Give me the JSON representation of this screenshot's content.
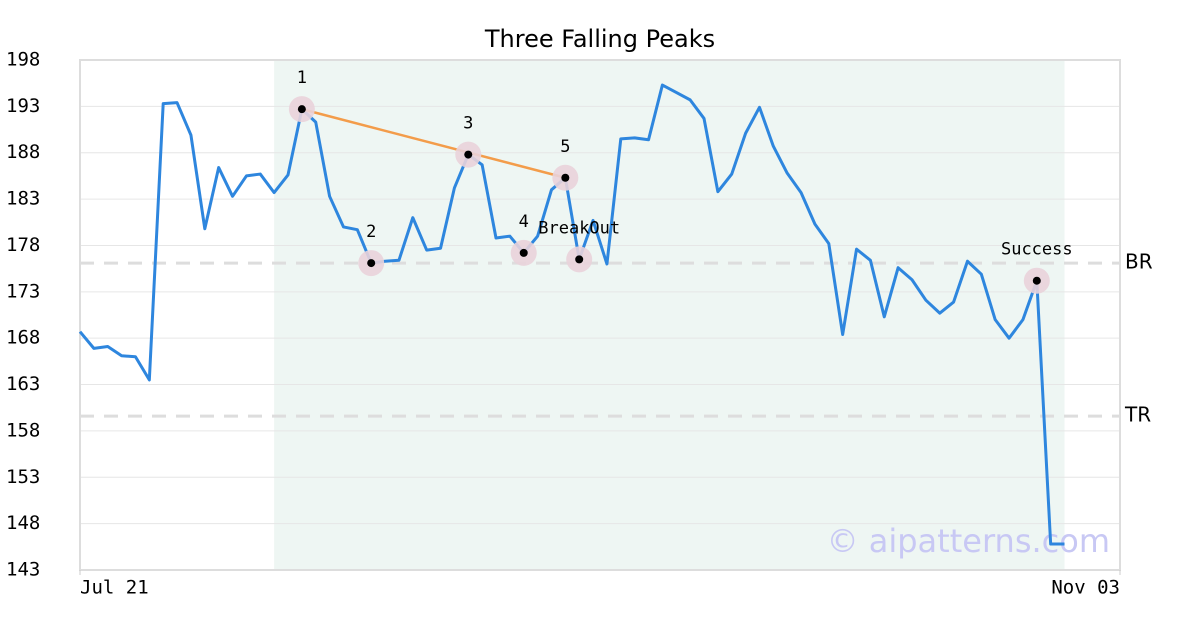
{
  "chart_data": {
    "type": "line",
    "title": "Three Falling Peaks",
    "x": [
      0,
      1,
      2,
      3,
      4,
      5,
      6,
      7,
      8,
      9,
      10,
      11,
      12,
      13,
      14,
      15,
      16,
      17,
      18,
      19,
      20,
      21,
      22,
      23,
      24,
      25,
      26,
      27,
      28,
      29,
      30,
      31,
      32,
      33,
      34,
      35,
      36,
      37,
      38,
      39,
      40,
      41,
      42,
      43,
      44,
      45,
      46,
      47,
      48,
      49,
      50,
      51,
      52,
      53,
      54,
      55,
      56,
      57,
      58,
      59,
      60,
      61,
      62,
      63,
      64,
      65,
      66,
      67,
      68,
      69,
      70,
      71
    ],
    "series": [
      {
        "color": "#2e86de",
        "values": [
          168.7,
          166.9,
          167.1,
          166.1,
          166.0,
          163.5,
          193.3,
          193.4,
          189.9,
          179.8,
          186.4,
          183.3,
          185.5,
          185.7,
          183.7,
          185.6,
          192.7,
          191.3,
          183.3,
          180.0,
          179.7,
          176.1,
          176.3,
          176.4,
          181.0,
          177.5,
          177.7,
          184.2,
          187.8,
          186.7,
          178.8,
          179.0,
          177.2,
          179.0,
          184.0,
          185.3,
          176.5,
          180.7,
          176.0,
          189.5,
          189.6,
          189.4,
          195.3,
          194.5,
          193.7,
          191.7,
          183.8,
          185.7,
          190.1,
          192.9,
          188.7,
          185.8,
          183.7,
          180.3,
          178.2,
          168.4,
          177.6,
          176.4,
          170.3,
          175.6,
          174.3,
          172.1,
          170.7,
          171.9,
          176.3,
          174.9,
          170.0,
          168.0,
          170.0,
          174.2,
          145.8,
          145.8
        ]
      }
    ],
    "xlim": [
      0,
      75
    ],
    "xticks": [
      {
        "value": 0,
        "label": "Jul 21"
      },
      {
        "value": 75,
        "label": "Nov 03"
      }
    ],
    "ylim": [
      143,
      198
    ],
    "yticks": [
      143,
      148,
      153,
      158,
      163,
      168,
      173,
      178,
      183,
      188,
      193,
      198
    ],
    "grid": true,
    "highlight": {
      "x": [
        14,
        71
      ],
      "color": "#eef6f3"
    },
    "trend": {
      "x": [
        16,
        35
      ],
      "y": [
        192.7,
        185.3
      ],
      "color": "#f39c4a"
    },
    "hlines": [
      {
        "label": "BR",
        "value": 176.1
      },
      {
        "label": "TR",
        "value": 159.6
      }
    ],
    "annotations": [
      {
        "label": "1",
        "x": 16,
        "y": 192.7
      },
      {
        "label": "2",
        "x": 21,
        "y": 176.1
      },
      {
        "label": "3",
        "x": 28,
        "y": 187.8
      },
      {
        "label": "4",
        "x": 32,
        "y": 177.2
      },
      {
        "label": "5",
        "x": 35,
        "y": 185.3
      },
      {
        "label": "BreakOut",
        "x": 36,
        "y": 176.5
      },
      {
        "label": "Success",
        "x": 69,
        "y": 174.2
      }
    ],
    "watermark": "© aipatterns.com"
  }
}
